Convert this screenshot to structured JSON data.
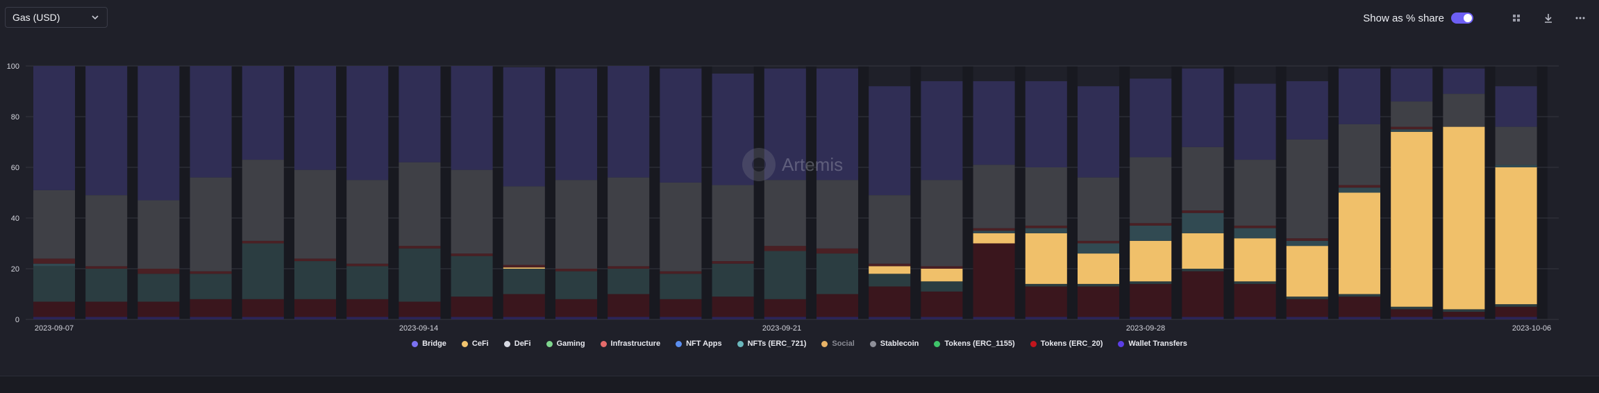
{
  "header": {
    "metric_select": "Gas (USD)",
    "share_toggle_label": "Show as % share",
    "share_toggle_on": true
  },
  "icons": [
    "chevron-down-icon",
    "grid-icon",
    "download-icon",
    "more-icon"
  ],
  "watermark": "Artemis",
  "colors": {
    "Bridge": "#7b72f2",
    "CeFi": "#f2c46e",
    "DeFi": "#d7d9e3",
    "Gaming": "#7fd68e",
    "Infrastructure": "#e56b6b",
    "NFT Apps": "#5b8ef0",
    "NFTs (ERC_721)": "#6bb8bd",
    "Social": "#e8b367",
    "Stablecoin": "#8f9099",
    "Tokens (ERC_1155)": "#3fc46a",
    "Tokens (ERC_20)": "#c2151d",
    "Wallet Transfers": "#5b3ee6"
  },
  "chart_data": {
    "type": "bar",
    "stacked": true,
    "percent_share": true,
    "ylim": [
      0,
      100
    ],
    "yticks": [
      0,
      20,
      40,
      60,
      80,
      100
    ],
    "x_tick_labels": [
      "2023-09-07",
      "2023-09-14",
      "2023-09-21",
      "2023-09-28",
      "2023-10-06"
    ],
    "grid": true,
    "legend_position": "bottom",
    "categories": [
      "2023-09-07",
      "2023-09-08",
      "2023-09-09",
      "2023-09-10",
      "2023-09-11",
      "2023-09-12",
      "2023-09-13",
      "2023-09-14",
      "2023-09-15",
      "2023-09-16",
      "2023-09-17",
      "2023-09-18",
      "2023-09-19",
      "2023-09-20",
      "2023-09-21",
      "2023-09-22",
      "2023-09-23",
      "2023-09-24",
      "2023-09-25",
      "2023-09-26",
      "2023-09-27",
      "2023-09-28",
      "2023-09-29",
      "2023-09-30",
      "2023-10-01",
      "2023-10-02",
      "2023-10-03",
      "2023-10-04",
      "2023-10-05"
    ],
    "series": [
      {
        "name": "Wallet Transfers",
        "values": [
          1,
          1,
          1,
          1,
          1,
          1,
          1,
          1,
          1,
          1,
          1,
          1,
          1,
          1,
          1,
          1,
          1,
          1,
          1,
          1,
          1,
          1,
          1,
          1,
          1,
          1,
          1,
          1,
          1
        ]
      },
      {
        "name": "Tokens (ERC_20)",
        "values": [
          6,
          6,
          6,
          7,
          7,
          7,
          7,
          6,
          8,
          9,
          7,
          9,
          7,
          8,
          7,
          9,
          12,
          10,
          29,
          12,
          12,
          13,
          18,
          13,
          7,
          8,
          3,
          2,
          4
        ]
      },
      {
        "name": "NFTs (ERC_721)",
        "values": [
          14,
          13,
          11,
          10,
          22,
          15,
          13,
          21,
          16,
          10,
          11,
          10,
          10,
          13,
          19,
          16,
          5,
          4,
          0,
          1,
          1,
          1,
          1,
          1,
          1,
          1,
          1,
          1,
          1
        ]
      },
      {
        "name": "CeFi",
        "values": [
          0,
          0,
          0,
          0,
          0,
          0,
          0,
          0,
          0,
          0.5,
          0,
          0,
          0,
          0,
          0,
          0,
          3,
          5,
          4,
          20,
          12,
          16,
          14,
          17,
          20,
          40,
          69,
          72,
          54
        ]
      },
      {
        "name": "Bridge",
        "values": [
          1,
          0,
          0,
          0,
          0,
          0,
          0,
          0,
          0,
          0,
          0,
          0,
          0,
          0,
          0,
          0,
          0,
          0,
          1,
          2,
          4,
          6,
          8,
          4,
          2,
          2,
          1,
          0,
          1
        ]
      },
      {
        "name": "Infrastructure",
        "values": [
          2,
          1,
          2,
          1,
          1,
          1,
          1,
          1,
          1,
          1,
          1,
          1,
          1,
          1,
          2,
          2,
          1,
          1,
          1,
          1,
          1,
          1,
          1,
          1,
          1,
          1,
          1,
          0,
          0
        ]
      },
      {
        "name": "Stablecoin",
        "values": [
          27,
          28,
          27,
          37,
          32,
          35,
          33,
          33,
          33,
          31,
          35,
          35,
          35,
          30,
          26,
          27,
          27,
          34,
          25,
          23,
          25,
          26,
          25,
          26,
          39,
          24,
          10,
          13,
          15
        ]
      },
      {
        "name": "DeFi",
        "values": [
          49,
          51,
          53,
          44,
          37,
          41,
          45,
          38,
          41,
          47,
          44,
          44,
          45,
          44,
          44,
          44,
          43,
          39,
          33,
          34,
          36,
          31,
          31,
          30,
          23,
          22,
          13,
          10,
          16
        ]
      }
    ]
  },
  "legend": [
    {
      "label": "Bridge",
      "color": "#7b72f2",
      "dim": false
    },
    {
      "label": "CeFi",
      "color": "#f2c46e",
      "dim": false
    },
    {
      "label": "DeFi",
      "color": "#d7d9e3",
      "dim": false
    },
    {
      "label": "Gaming",
      "color": "#7fd68e",
      "dim": false
    },
    {
      "label": "Infrastructure",
      "color": "#e56b6b",
      "dim": false
    },
    {
      "label": "NFT Apps",
      "color": "#5b8ef0",
      "dim": false
    },
    {
      "label": "NFTs (ERC_721)",
      "color": "#6bb8bd",
      "dim": false
    },
    {
      "label": "Social",
      "color": "#e8b367",
      "dim": true
    },
    {
      "label": "Stablecoin",
      "color": "#8f9099",
      "dim": false
    },
    {
      "label": "Tokens (ERC_1155)",
      "color": "#3fc46a",
      "dim": false
    },
    {
      "label": "Tokens (ERC_20)",
      "color": "#c2151d",
      "dim": false
    },
    {
      "label": "Wallet Transfers",
      "color": "#5b3ee6",
      "dim": false
    }
  ]
}
